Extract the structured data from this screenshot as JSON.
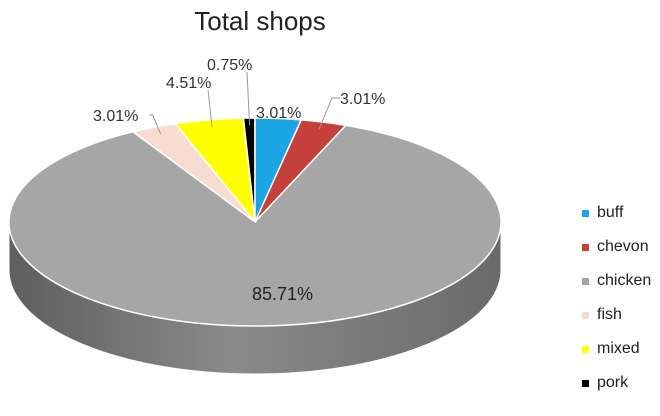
{
  "chart_data": {
    "type": "pie",
    "title": "Total shops",
    "categories": [
      "buff",
      "chevon",
      "chicken",
      "fish",
      "mixed",
      "pork"
    ],
    "values": [
      3.01,
      3.01,
      85.71,
      3.01,
      4.51,
      0.75
    ],
    "data_labels": [
      "3.01%",
      "3.01%",
      "85.71%",
      "3.01%",
      "4.51%",
      "0.75%"
    ],
    "colors": [
      "#1CA5E4",
      "#C5403B",
      "#A6A6A6",
      "#F6DDD0",
      "#FFFF00",
      "#000000"
    ],
    "legend_position": "right",
    "style": "3d"
  }
}
